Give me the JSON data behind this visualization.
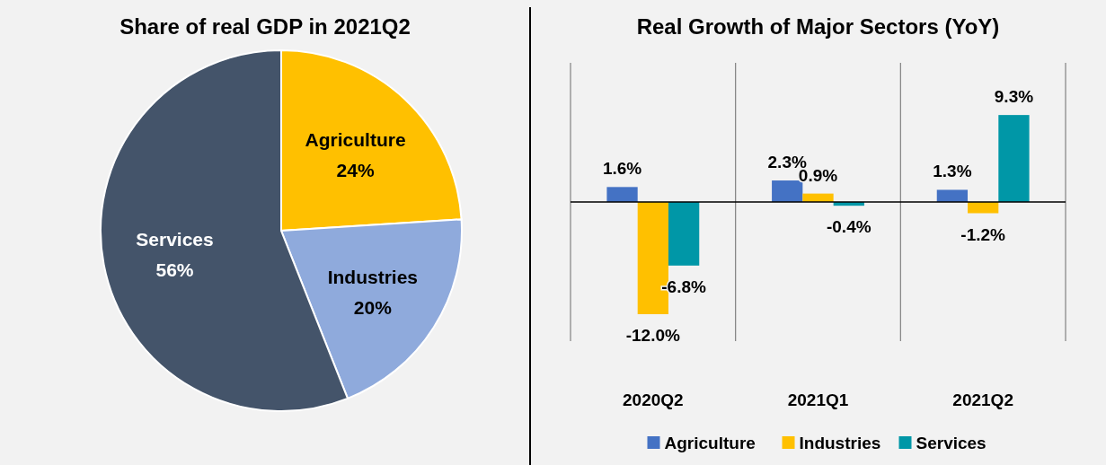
{
  "chart_data": [
    {
      "type": "pie",
      "title": "Share of real GDP in 2021Q2",
      "categories": [
        "Agriculture",
        "Industries",
        "Services"
      ],
      "values": [
        24,
        20,
        56
      ],
      "colors": [
        "#ffc000",
        "#8faadc",
        "#44546a"
      ],
      "value_labels": [
        "24%",
        "20%",
        "56%"
      ],
      "legend": false
    },
    {
      "type": "bar",
      "title": "Real Growth of Major Sectors (YoY)",
      "categories": [
        "2020Q2",
        "2021Q1",
        "2021Q2"
      ],
      "legend": "bottom",
      "series": [
        {
          "name": "Agriculture",
          "color": "#4472c4",
          "values": [
            1.6,
            2.3,
            1.3
          ],
          "value_labels": [
            "1.6%",
            "2.3%",
            "1.3%"
          ]
        },
        {
          "name": "Industries",
          "color": "#ffc000",
          "values": [
            -12.0,
            0.9,
            -1.2
          ],
          "value_labels": [
            "-12.0%",
            "0.9%",
            "-1.2%"
          ]
        },
        {
          "name": "Services",
          "color": "#0097a7",
          "values": [
            -6.8,
            -0.4,
            9.3
          ],
          "value_labels": [
            "-6.8%",
            "-0.4%",
            "9.3%"
          ]
        }
      ]
    }
  ]
}
